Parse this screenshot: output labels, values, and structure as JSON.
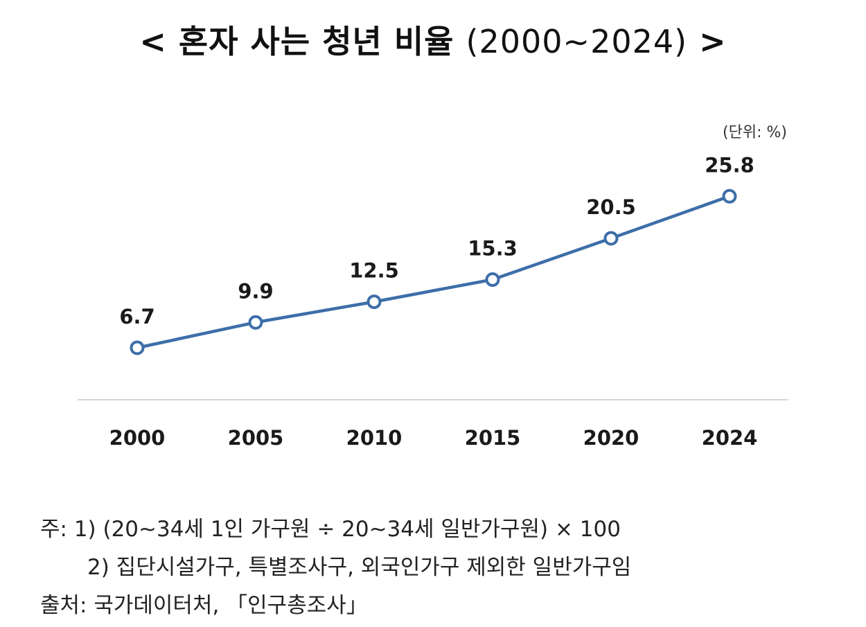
{
  "title": {
    "left_bracket": "<",
    "text": "혼자 사는 청년 비율",
    "years": "(2000~2024)",
    "right_bracket": ">"
  },
  "colors": {
    "line": "#3d6ea8",
    "marker_fill": "#ffffff",
    "baseline": "#d6d6d6",
    "text": "#1a1a1a"
  },
  "chart_data": {
    "type": "line",
    "title": "혼자 사는 청년 비율 (2000~2024)",
    "unit_label": "(단위: %)",
    "categories": [
      "2000",
      "2005",
      "2010",
      "2015",
      "2020",
      "2024"
    ],
    "series": [
      {
        "name": "혼자 사는 청년 비율",
        "values": [
          6.7,
          9.9,
          12.5,
          15.3,
          20.5,
          25.8
        ]
      }
    ],
    "value_labels": [
      "6.7",
      "9.9",
      "12.5",
      "15.3",
      "20.5",
      "25.8"
    ],
    "xlabel": "",
    "ylabel": "",
    "grid": false,
    "legend": "none"
  },
  "notes": {
    "note1": "주: 1) (20~34세 1인 가구원 ÷ 20~34세 일반가구원) × 100",
    "note2": "2) 집단시설가구, 특별조사구, 외국인가구 제외한 일반가구임",
    "source": "출처: 국가데이터처, 「인구총조사」"
  }
}
